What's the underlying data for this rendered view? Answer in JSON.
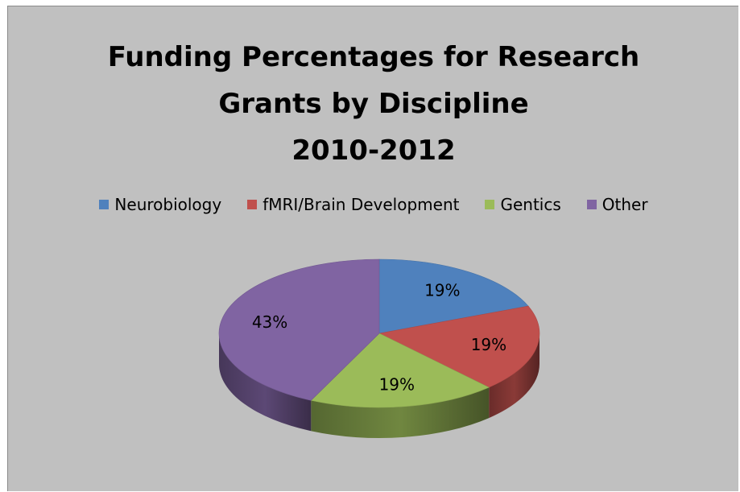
{
  "chart_data": {
    "type": "pie",
    "title_lines": [
      "Funding Percentages for Research",
      "Grants by Discipline",
      "2010-2012"
    ],
    "categories": [
      "Neurobiology",
      "fMRI/Brain Development",
      "Gentics",
      "Other"
    ],
    "values": [
      19,
      19,
      19,
      43
    ],
    "data_labels": [
      "19%",
      "19%",
      "19%",
      "43%"
    ],
    "colors": [
      "#4f81bd",
      "#c0504d",
      "#9bbb59",
      "#8064a2"
    ],
    "legend_position": "top",
    "three_d": true
  }
}
